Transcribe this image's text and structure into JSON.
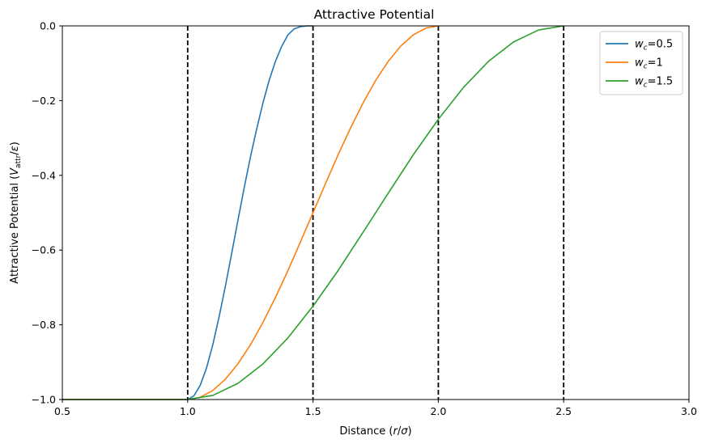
{
  "chart_data": {
    "type": "line",
    "title": "Attractive Potential",
    "xlabel": "Distance (r/σ)",
    "ylabel": "Attractive Potential (V_attr/ε)",
    "xlabel_parts": {
      "prefix": "Distance (",
      "var": "r",
      "sep": "/",
      "sym": "σ",
      "suffix": ")"
    },
    "ylabel_parts": {
      "prefix": "Attractive Potential (",
      "var": "V",
      "sub": "attr",
      "sep": "/",
      "sym": "ε",
      "suffix": ")"
    },
    "xlim": [
      0.5,
      3.0
    ],
    "ylim": [
      -1.0,
      0.0
    ],
    "xticks": [
      0.5,
      1.0,
      1.5,
      2.0,
      2.5,
      3.0
    ],
    "xtick_labels": [
      "0.5",
      "1.0",
      "1.5",
      "2.0",
      "2.5",
      "3.0"
    ],
    "yticks": [
      -1.0,
      -0.8,
      -0.6,
      -0.4,
      -0.2,
      0.0
    ],
    "ytick_labels": [
      "−1.0",
      "−0.8",
      "−0.6",
      "−0.4",
      "−0.2",
      "0.0"
    ],
    "grid": false,
    "legend_position": "top-right",
    "vertical_lines": [
      1.0,
      1.5,
      2.0,
      2.5
    ],
    "vertical_line_style": {
      "color": "#000000",
      "dash": "dashed"
    },
    "series": [
      {
        "name": "w_c=0.5",
        "legend_parts": {
          "var": "w",
          "sub": "c",
          "value": "=0.5"
        },
        "color": "#1f77b4",
        "x": [
          0.5,
          0.7,
          0.9,
          1.0,
          1.025,
          1.05,
          1.075,
          1.1,
          1.125,
          1.15,
          1.175,
          1.2,
          1.225,
          1.25,
          1.275,
          1.3,
          1.325,
          1.35,
          1.375,
          1.4,
          1.425,
          1.45,
          1.475,
          1.5
        ],
        "y": [
          -1.0,
          -1.0,
          -1.0,
          -1.0,
          -0.99,
          -0.962,
          -0.916,
          -0.854,
          -0.78,
          -0.698,
          -0.611,
          -0.522,
          -0.435,
          -0.352,
          -0.277,
          -0.207,
          -0.146,
          -0.095,
          -0.055,
          -0.024,
          -0.008,
          -0.002,
          0.0,
          0.0
        ]
      },
      {
        "name": "w_c=1",
        "legend_parts": {
          "var": "w",
          "sub": "c",
          "value": "=1"
        },
        "color": "#ff7f0e",
        "x": [
          0.5,
          0.7,
          0.9,
          1.0,
          1.05,
          1.1,
          1.15,
          1.2,
          1.25,
          1.3,
          1.35,
          1.4,
          1.45,
          1.5,
          1.55,
          1.6,
          1.65,
          1.7,
          1.75,
          1.8,
          1.85,
          1.9,
          1.95,
          2.0
        ],
        "y": [
          -1.0,
          -1.0,
          -1.0,
          -1.0,
          -0.994,
          -0.976,
          -0.946,
          -0.905,
          -0.854,
          -0.794,
          -0.727,
          -0.655,
          -0.578,
          -0.5,
          -0.422,
          -0.345,
          -0.273,
          -0.206,
          -0.146,
          -0.095,
          -0.054,
          -0.024,
          -0.006,
          0.0
        ]
      },
      {
        "name": "w_c=1.5",
        "legend_parts": {
          "var": "w",
          "sub": "c",
          "value": "=1.5"
        },
        "color": "#2ca02c",
        "x": [
          0.5,
          0.7,
          0.9,
          1.0,
          1.1,
          1.2,
          1.3,
          1.4,
          1.5,
          1.6,
          1.7,
          1.8,
          1.9,
          2.0,
          2.1,
          2.2,
          2.3,
          2.4,
          2.5
        ],
        "y": [
          -1.0,
          -1.0,
          -1.0,
          -1.0,
          -0.989,
          -0.957,
          -0.905,
          -0.835,
          -0.75,
          -0.655,
          -0.552,
          -0.448,
          -0.345,
          -0.25,
          -0.165,
          -0.095,
          -0.043,
          -0.011,
          0.0
        ]
      }
    ]
  }
}
